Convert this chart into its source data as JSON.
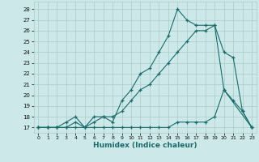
{
  "xlabel": "Humidex (Indice chaleur)",
  "bg_color": "#cde8e8",
  "grid_color": "#aacccc",
  "line_color": "#1a6b6b",
  "xlim": [
    -0.5,
    23.5
  ],
  "ylim": [
    16.5,
    28.7
  ],
  "yticks": [
    17,
    18,
    19,
    20,
    21,
    22,
    23,
    24,
    25,
    26,
    27,
    28
  ],
  "xticks": [
    0,
    1,
    2,
    3,
    4,
    5,
    6,
    7,
    8,
    9,
    10,
    11,
    12,
    13,
    14,
    15,
    16,
    17,
    18,
    19,
    20,
    21,
    22,
    23
  ],
  "line1_x": [
    0,
    1,
    2,
    3,
    4,
    5,
    6,
    7,
    8,
    9,
    10,
    11,
    12,
    13,
    14,
    15,
    16,
    17,
    18,
    19,
    20,
    23
  ],
  "line1_y": [
    17,
    17,
    17,
    17.5,
    18,
    17,
    18,
    18,
    17.5,
    19.5,
    20.5,
    22,
    22.5,
    24,
    25.5,
    28,
    27,
    26.5,
    26.5,
    26.5,
    20.5,
    17
  ],
  "line2_x": [
    0,
    1,
    2,
    3,
    4,
    5,
    6,
    7,
    8,
    9,
    10,
    11,
    12,
    13,
    14,
    15,
    16,
    17,
    18,
    19,
    20,
    21,
    22,
    23
  ],
  "line2_y": [
    17,
    17,
    17,
    17,
    17.5,
    17,
    17.5,
    18,
    18,
    18.5,
    19.5,
    20.5,
    21,
    22,
    23,
    24,
    25,
    26,
    26,
    26.5,
    24,
    23.5,
    18.5,
    17
  ],
  "line3_x": [
    0,
    1,
    2,
    3,
    4,
    5,
    6,
    7,
    8,
    9,
    10,
    11,
    12,
    13,
    14,
    15,
    16,
    17,
    18,
    19,
    20,
    21,
    22,
    23
  ],
  "line3_y": [
    17,
    17,
    17,
    17,
    17,
    17,
    17,
    17,
    17,
    17,
    17,
    17,
    17,
    17,
    17,
    17.5,
    17.5,
    17.5,
    17.5,
    18,
    20.5,
    19.5,
    18.5,
    17
  ]
}
